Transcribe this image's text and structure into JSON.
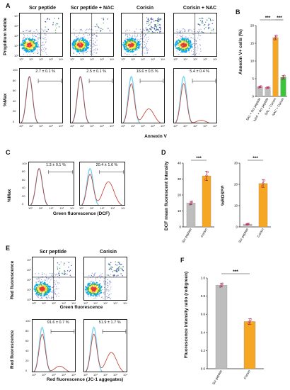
{
  "panels": {
    "A": {
      "label": "A",
      "titles": [
        "Scr peptide",
        "Scr peptide + NAC",
        "Corisin",
        "Corisin + NAC"
      ],
      "ylabel_dot": "Propidium Iodide",
      "ylabel_hist": "%Max",
      "xlabel": "Annexin V",
      "percents": [
        "2.7 ± 0.1 %",
        "2.5 ± 0.1 %",
        "16.6 ± 0.5 %",
        "5.4 ± 0.4 %"
      ],
      "ticks": [
        "10⁰",
        "10¹",
        "10²",
        "10³",
        "10⁴"
      ],
      "yticks": [
        "100",
        "80",
        "60",
        "40",
        "20",
        "0"
      ]
    },
    "B": {
      "label": "B",
      "ylabel": "Annexin V+ cells (%)",
      "sig": [
        "***",
        "***"
      ],
      "yticks": [
        "20",
        "15",
        "10",
        "5",
        "0"
      ]
    },
    "C": {
      "label": "C",
      "ylabel": "%Max",
      "xlabel": "Green fluorescence (DCF)",
      "percents": [
        "1.3 ± 0.1 %",
        "20.4 ± 1.6 %"
      ],
      "ticks": [
        "10⁰",
        "10¹",
        "10²",
        "10³",
        "10⁴"
      ],
      "yticks": [
        "100",
        "80",
        "60",
        "40",
        "20",
        "0"
      ]
    },
    "D": {
      "label": "D",
      "ylabel_left": "DCF mean fluorescent intensity",
      "ylabel_right": "%ROSʰⁱᵍʰ",
      "sig": [
        "***",
        "***"
      ],
      "yticks_left": [
        "40",
        "30",
        "20",
        "10",
        "0"
      ],
      "yticks_right": [
        "30",
        "20",
        "10",
        "0"
      ]
    },
    "E": {
      "label": "E",
      "titles": [
        "Scr peptide",
        "Corisin"
      ],
      "ylabel_dot": "Red fluorescence",
      "xlabel_dot": "Green fluorescence",
      "ylabel_hist": "Red fluorescence",
      "xlabel_hist": "Red fluorescence (JC-1 aggegates)",
      "percents": [
        "91.6 ± 0.7 %",
        "51.9 ± 1.7 %"
      ],
      "ticks": [
        "10⁰",
        "10¹",
        "10²",
        "10³",
        "10⁴"
      ],
      "yticks": [
        "100",
        "80",
        "60",
        "40",
        "20",
        "0"
      ]
    },
    "F": {
      "label": "F",
      "ylabel": "Fluorescence intensity ratio (red/green)",
      "sig": [
        "***"
      ],
      "yticks": [
        "1.0",
        "0.8",
        "0.6",
        "0.4",
        "0.2",
        "0.0"
      ]
    }
  },
  "chart_data": [
    {
      "type": "bar",
      "panel": "B",
      "categories": [
        "SAL + Scr peptide",
        "NAC + Scr peptide",
        "SAL + Corisin",
        "NAC + Corisin"
      ],
      "values": [
        2.7,
        2.5,
        16.6,
        5.4
      ],
      "errors": [
        0.2,
        0.1,
        0.6,
        0.5
      ],
      "colors": [
        "#bdbdbd",
        "#bdbdbd",
        "#f5a623",
        "#3cc43c"
      ],
      "ylabel": "Annexin V+ cells (%)",
      "ylim": [
        0,
        20
      ]
    },
    {
      "type": "bar",
      "panel": "D-left",
      "categories": [
        "Scr peptide",
        "Corisin"
      ],
      "values": [
        15,
        32
      ],
      "errors": [
        1,
        3
      ],
      "colors": [
        "#bdbdbd",
        "#f5a623"
      ],
      "ylabel": "DCF mean fluorescent intensity",
      "ylim": [
        0,
        40
      ]
    },
    {
      "type": "bar",
      "panel": "D-right",
      "categories": [
        "Scr peptide",
        "Corisin"
      ],
      "values": [
        1.3,
        20.4
      ],
      "errors": [
        0.2,
        1.8
      ],
      "colors": [
        "#bdbdbd",
        "#f5a623"
      ],
      "ylabel": "%ROSʰⁱᵍʰ",
      "ylim": [
        0,
        30
      ]
    },
    {
      "type": "bar",
      "panel": "F",
      "categories": [
        "Scr peptide",
        "Corisin"
      ],
      "values": [
        0.92,
        0.52
      ],
      "errors": [
        0.02,
        0.03
      ],
      "colors": [
        "#bdbdbd",
        "#f5a623"
      ],
      "ylabel": "Fluorescence intensity ratio (red/green)",
      "ylim": [
        0,
        1.0
      ]
    }
  ]
}
